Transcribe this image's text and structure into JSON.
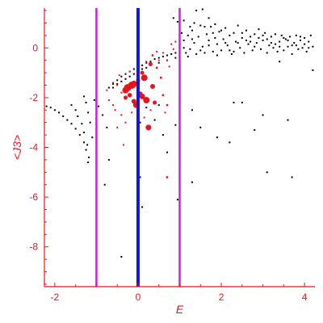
{
  "chart_data": {
    "type": "scatter",
    "title": "",
    "xlabel": "E",
    "ylabel": "<J3>",
    "xlim": [
      -2.25,
      4.25
    ],
    "ylim": [
      -9.6,
      1.6
    ],
    "x_ticks": [
      -2,
      0,
      2,
      4
    ],
    "x_tick_labels": [
      "-2",
      "0",
      "2",
      "4"
    ],
    "y_ticks": [
      0,
      -2,
      -4,
      -6,
      -8
    ],
    "y_tick_labels": [
      "0",
      "-2",
      "-4",
      "-6",
      "-8"
    ],
    "grid": false,
    "colors": {
      "axes": "#e8141c",
      "zero_line": "#1414e6",
      "bound_lines": "#c81ee6",
      "black_points": "#000000",
      "red_points": "#e8141c"
    },
    "vertical_lines": [
      {
        "name": "",
        "x": 0,
        "color": "#1414e6"
      },
      {
        "name": "",
        "x": -1,
        "color": "#c81ee6"
      },
      {
        "name": "",
        "x": 1,
        "color": "#c81ee6"
      }
    ],
    "series": [
      {
        "name": "",
        "color": "#000000",
        "points": [
          [
            -2.2,
            -2.35
          ],
          [
            -2.1,
            -2.4
          ],
          [
            -2.0,
            -2.5
          ],
          [
            -1.9,
            -2.6
          ],
          [
            -1.8,
            -2.75
          ],
          [
            -1.7,
            -2.9
          ],
          [
            -1.6,
            -3.05
          ],
          [
            -1.5,
            -3.25
          ],
          [
            -1.4,
            -3.5
          ],
          [
            -1.3,
            -3.8
          ],
          [
            -1.25,
            -4.1
          ],
          [
            -1.2,
            -4.6
          ],
          [
            -1.6,
            -2.3
          ],
          [
            -1.5,
            -2.5
          ],
          [
            -1.45,
            -2.75
          ],
          [
            -1.35,
            -3.05
          ],
          [
            -1.3,
            -3.4
          ],
          [
            -1.22,
            -3.9
          ],
          [
            -1.18,
            -4.4
          ],
          [
            -1.3,
            -1.95
          ],
          [
            -1.25,
            -2.2
          ],
          [
            -1.2,
            -2.6
          ],
          [
            -1.15,
            -3.0
          ],
          [
            -1.1,
            -3.6
          ],
          [
            -1.05,
            -2.1
          ],
          [
            -0.95,
            -2.35
          ],
          [
            -0.85,
            -2.7
          ],
          [
            -0.75,
            -3.2
          ],
          [
            -0.7,
            -4.5
          ],
          [
            -0.8,
            -5.5
          ],
          [
            -0.4,
            -8.4
          ],
          [
            -0.7,
            -1.6
          ],
          [
            -0.6,
            -1.45
          ],
          [
            -0.5,
            -1.3
          ],
          [
            -0.4,
            -1.15
          ],
          [
            -0.3,
            -1.05
          ],
          [
            -0.2,
            -0.95
          ],
          [
            -0.1,
            -0.85
          ],
          [
            0.0,
            -0.75
          ],
          [
            0.1,
            -0.7
          ],
          [
            0.2,
            -0.6
          ],
          [
            0.3,
            -0.55
          ],
          [
            0.4,
            -0.45
          ],
          [
            0.5,
            -0.4
          ],
          [
            0.6,
            -0.35
          ],
          [
            0.7,
            -0.3
          ],
          [
            0.8,
            -0.25
          ],
          [
            0.9,
            -0.2
          ],
          [
            -0.6,
            -1.6
          ],
          [
            -0.5,
            -1.45
          ],
          [
            -0.4,
            -1.35
          ],
          [
            -0.3,
            -1.25
          ],
          [
            -0.2,
            -1.15
          ],
          [
            -0.1,
            -1.05
          ],
          [
            0.0,
            -0.95
          ],
          [
            0.1,
            -0.85
          ],
          [
            0.2,
            -0.8
          ],
          [
            0.3,
            -0.7
          ],
          [
            0.5,
            -0.6
          ],
          [
            0.7,
            -0.5
          ],
          [
            0.9,
            -0.4
          ],
          [
            0.0,
            -1.8
          ],
          [
            0.05,
            -3.0
          ],
          [
            0.0,
            -4.2
          ],
          [
            0.05,
            -5.2
          ],
          [
            0.0,
            -7.75
          ],
          [
            0.1,
            -6.4
          ],
          [
            0.2,
            -2.4
          ],
          [
            0.4,
            -2.9
          ],
          [
            0.5,
            -2.3
          ],
          [
            0.6,
            -3.5
          ],
          [
            0.7,
            -4.2
          ],
          [
            0.9,
            -3.1
          ],
          [
            0.95,
            -6.1
          ],
          [
            1.3,
            -2.5
          ],
          [
            1.3,
            -5.4
          ],
          [
            1.5,
            -3.2
          ],
          [
            1.9,
            -3.6
          ],
          [
            2.2,
            -3.8
          ],
          [
            2.3,
            -2.2
          ],
          [
            2.5,
            -2.2
          ],
          [
            2.8,
            -3.3
          ],
          [
            3.0,
            -2.7
          ],
          [
            3.6,
            -2.9
          ],
          [
            1.0,
            -4.8
          ],
          [
            3.1,
            -5.0
          ],
          [
            3.7,
            -5.2
          ],
          [
            0.85,
            1.2
          ],
          [
            0.95,
            1.05
          ],
          [
            1.1,
            1.1
          ],
          [
            1.25,
            0.85
          ],
          [
            1.4,
            1.5
          ],
          [
            1.55,
            1.55
          ],
          [
            1.7,
            1.2
          ],
          [
            1.85,
            0.95
          ],
          [
            1.0,
            -0.1
          ],
          [
            1.0,
            -0.3
          ],
          [
            1.1,
            0.3
          ],
          [
            1.15,
            -0.2
          ],
          [
            1.2,
            0.5
          ],
          [
            1.25,
            -0.05
          ],
          [
            1.3,
            0.7
          ],
          [
            1.35,
            0.2
          ],
          [
            1.4,
            -0.25
          ],
          [
            1.45,
            0.45
          ],
          [
            1.5,
            0.9
          ],
          [
            1.55,
            0.05
          ],
          [
            1.6,
            -0.2
          ],
          [
            1.65,
            0.55
          ],
          [
            1.7,
            0.3
          ],
          [
            1.75,
            0.85
          ],
          [
            1.8,
            -0.15
          ],
          [
            1.85,
            0.4
          ],
          [
            1.9,
            0.15
          ],
          [
            1.95,
            0.65
          ],
          [
            2.0,
            -0.1
          ],
          [
            2.05,
            0.35
          ],
          [
            2.1,
            0.8
          ],
          [
            2.15,
            0.1
          ],
          [
            2.2,
            0.5
          ],
          [
            2.25,
            -0.25
          ],
          [
            2.3,
            0.6
          ],
          [
            2.35,
            0.25
          ],
          [
            2.4,
            0.9
          ],
          [
            2.45,
            0.0
          ],
          [
            2.5,
            0.4
          ],
          [
            2.55,
            -0.2
          ],
          [
            2.6,
            0.7
          ],
          [
            2.65,
            0.15
          ],
          [
            2.7,
            0.45
          ],
          [
            2.75,
            -0.1
          ],
          [
            2.8,
            0.55
          ],
          [
            2.85,
            0.2
          ],
          [
            2.9,
            0.75
          ],
          [
            2.95,
            -0.05
          ],
          [
            3.0,
            0.3
          ],
          [
            3.05,
            0.6
          ],
          [
            3.1,
            -0.2
          ],
          [
            3.15,
            0.1
          ],
          [
            3.2,
            0.45
          ],
          [
            3.25,
            0.0
          ],
          [
            3.3,
            0.55
          ],
          [
            3.35,
            -0.15
          ],
          [
            3.4,
            0.25
          ],
          [
            3.45,
            0.5
          ],
          [
            3.5,
            -0.1
          ],
          [
            3.55,
            0.35
          ],
          [
            3.6,
            0.05
          ],
          [
            3.65,
            0.45
          ],
          [
            3.7,
            -0.25
          ],
          [
            3.75,
            0.2
          ],
          [
            3.8,
            0.5
          ],
          [
            3.85,
            -0.05
          ],
          [
            3.9,
            0.3
          ],
          [
            3.95,
            0.0
          ],
          [
            4.0,
            0.4
          ],
          [
            4.05,
            -0.15
          ],
          [
            4.1,
            0.25
          ],
          [
            4.15,
            0.5
          ],
          [
            4.2,
            0.05
          ],
          [
            1.05,
            0.6
          ],
          [
            1.2,
            -0.35
          ],
          [
            1.35,
            1.0
          ],
          [
            1.6,
            0.85
          ],
          [
            1.8,
            0.6
          ],
          [
            2.0,
            0.7
          ],
          [
            2.2,
            -0.1
          ],
          [
            2.4,
            0.2
          ],
          [
            2.6,
            0.3
          ],
          [
            2.8,
            0.05
          ],
          [
            3.0,
            0.5
          ],
          [
            3.2,
            0.2
          ],
          [
            3.4,
            0.05
          ],
          [
            3.6,
            0.3
          ],
          [
            3.8,
            0.1
          ],
          [
            4.0,
            0.15
          ],
          [
            1.1,
            0.0
          ],
          [
            1.3,
            0.35
          ],
          [
            1.5,
            -0.1
          ],
          [
            1.7,
            0.1
          ],
          [
            1.9,
            -0.3
          ],
          [
            2.1,
            0.2
          ],
          [
            2.3,
            -0.15
          ],
          [
            2.5,
            0.6
          ],
          [
            2.7,
            0.25
          ],
          [
            2.9,
            0.4
          ],
          [
            3.1,
            0.35
          ],
          [
            3.3,
            0.15
          ],
          [
            3.5,
            0.4
          ],
          [
            3.7,
            0.1
          ],
          [
            3.9,
            0.45
          ],
          [
            4.1,
            0.0
          ],
          [
            3.4,
            -0.55
          ],
          [
            4.2,
            -0.9
          ]
        ]
      },
      {
        "name": "",
        "color": "#e8141c",
        "points": [
          [
            -0.25,
            -1.6,
            7
          ],
          [
            -0.15,
            -1.5,
            7
          ],
          [
            -0.3,
            -1.7,
            6
          ],
          [
            -0.1,
            -1.45,
            6
          ],
          [
            0.15,
            -1.2,
            6
          ],
          [
            0.2,
            -2.1,
            6
          ],
          [
            0.25,
            -3.2,
            5
          ],
          [
            -0.05,
            -2.3,
            5
          ],
          [
            0.1,
            -1.95,
            5
          ],
          [
            0.05,
            -1.85,
            4
          ],
          [
            -0.1,
            -2.15,
            4
          ],
          [
            0.35,
            -1.55,
            4
          ],
          [
            -0.2,
            -1.9,
            3.5
          ],
          [
            0.0,
            -1.3,
            3
          ],
          [
            -0.3,
            -2.0,
            3
          ],
          [
            0.4,
            -2.2,
            3
          ],
          [
            0.1,
            -1.0,
            3
          ],
          [
            0.3,
            -0.65,
            3
          ],
          [
            0.45,
            -0.8,
            2.5
          ],
          [
            0.55,
            -1.2,
            2.5
          ],
          [
            0.6,
            -1.9,
            2.5
          ],
          [
            0.7,
            -2.3,
            2.5
          ],
          [
            0.35,
            -0.3,
            2.5
          ],
          [
            0.2,
            -0.55,
            2
          ],
          [
            0.0,
            -0.9,
            2
          ],
          [
            -0.4,
            -1.8,
            2
          ],
          [
            -0.5,
            -1.5,
            2
          ],
          [
            -0.6,
            -1.4,
            2
          ],
          [
            -0.7,
            -2.1,
            2
          ],
          [
            -0.55,
            -2.5,
            2
          ],
          [
            -0.4,
            -2.7,
            2
          ],
          [
            -0.3,
            -3.0,
            2
          ],
          [
            -0.5,
            -3.2,
            2
          ],
          [
            -0.35,
            -3.9,
            2
          ],
          [
            0.6,
            -0.2,
            2
          ],
          [
            0.8,
            0.15,
            2
          ],
          [
            0.9,
            0.25,
            2
          ],
          [
            0.7,
            -0.5,
            2
          ],
          [
            0.85,
            -0.05,
            2
          ],
          [
            1.0,
            0.35,
            2
          ],
          [
            0.45,
            -0.15,
            2
          ],
          [
            0.5,
            -0.5,
            2
          ],
          [
            0.75,
            -0.75,
            2
          ],
          [
            -0.2,
            -0.95,
            2
          ],
          [
            -0.45,
            -1.1,
            2
          ],
          [
            0.65,
            -2.6,
            2
          ],
          [
            0.7,
            -5.2,
            2.5
          ],
          [
            0.3,
            -2.5,
            2
          ],
          [
            0.15,
            -2.8,
            2
          ],
          [
            -0.15,
            -2.6,
            2
          ],
          [
            -0.6,
            -2.3,
            2
          ],
          [
            -0.75,
            -1.7,
            2
          ]
        ]
      }
    ]
  }
}
